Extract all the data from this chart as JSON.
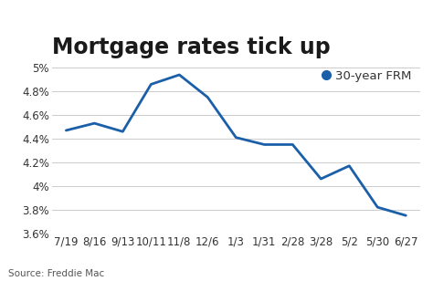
{
  "title": "Mortgage rates tick up",
  "legend_label": "30-year FRM",
  "source_text": "Source: Freddie Mac",
  "line_color": "#1a5fa8",
  "marker_color": "#1a5fa8",
  "background_color": "#ffffff",
  "grid_color": "#cccccc",
  "x_labels": [
    "7/19",
    "8/16",
    "9/13",
    "10/11",
    "11/8",
    "12/6",
    "1/3",
    "1/31",
    "2/28",
    "3/28",
    "5/2",
    "5/30",
    "6/27"
  ],
  "x_values": [
    0,
    1,
    2,
    3,
    4,
    5,
    6,
    7,
    8,
    9,
    10,
    11,
    12
  ],
  "y_values": [
    4.47,
    4.53,
    4.46,
    4.86,
    4.94,
    4.75,
    4.41,
    4.35,
    4.35,
    4.06,
    4.17,
    3.82,
    3.75
  ],
  "ylim": [
    3.6,
    5.05
  ],
  "yticks": [
    3.6,
    3.8,
    4.0,
    4.2,
    4.4,
    4.6,
    4.8,
    5.0
  ],
  "title_fontsize": 17,
  "axis_fontsize": 8.5,
  "legend_fontsize": 9.5,
  "source_fontsize": 7.5,
  "line_width": 2.0,
  "title_color": "#1a1a1a",
  "tick_label_color": "#333333"
}
